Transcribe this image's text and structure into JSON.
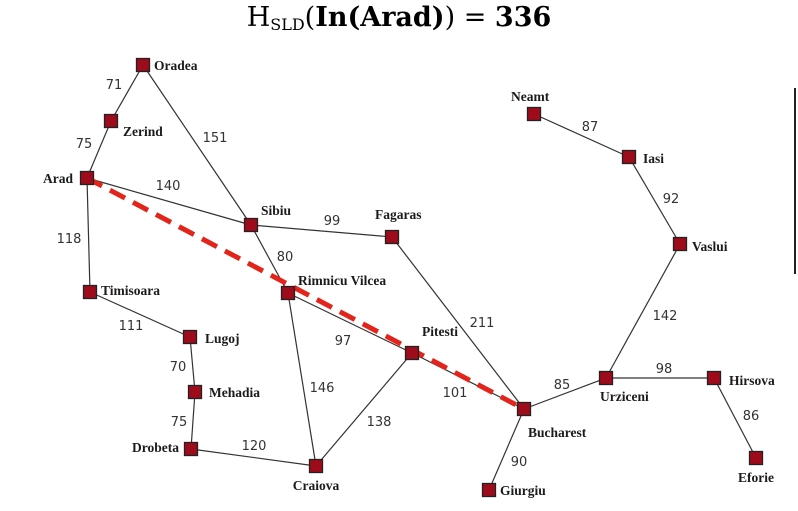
{
  "formula": {
    "prefix": "H",
    "subscript": "SLD",
    "open": "(",
    "expression": "In(Arad)",
    "close": ")",
    "equals": " = ",
    "value": "336"
  },
  "colors": {
    "node": "#9e0b1b",
    "highlight": "#e3241b",
    "road": "#333333"
  },
  "cities": [
    {
      "id": "oradea",
      "name": "Oradea"
    },
    {
      "id": "zerind",
      "name": "Zerind"
    },
    {
      "id": "arad",
      "name": "Arad"
    },
    {
      "id": "timisoara",
      "name": "Timisoara"
    },
    {
      "id": "lugoj",
      "name": "Lugoj"
    },
    {
      "id": "mehadia",
      "name": "Mehadia"
    },
    {
      "id": "drobeta",
      "name": "Drobeta"
    },
    {
      "id": "craiova",
      "name": "Craiova"
    },
    {
      "id": "sibiu",
      "name": "Sibiu"
    },
    {
      "id": "fagaras",
      "name": "Fagaras"
    },
    {
      "id": "rimnicu",
      "name": "Rimnicu Vilcea"
    },
    {
      "id": "pitesti",
      "name": "Pitesti"
    },
    {
      "id": "bucharest",
      "name": "Bucharest"
    },
    {
      "id": "giurgiu",
      "name": "Giurgiu"
    },
    {
      "id": "urziceni",
      "name": "Urziceni"
    },
    {
      "id": "hirsova",
      "name": "Hirsova"
    },
    {
      "id": "eforie",
      "name": "Eforie"
    },
    {
      "id": "vaslui",
      "name": "Vaslui"
    },
    {
      "id": "iasi",
      "name": "Iasi"
    },
    {
      "id": "neamt",
      "name": "Neamt"
    }
  ],
  "roads": [
    {
      "from": "oradea",
      "to": "zerind",
      "distance": "71"
    },
    {
      "from": "zerind",
      "to": "arad",
      "distance": "75"
    },
    {
      "from": "oradea",
      "to": "sibiu",
      "distance": "151"
    },
    {
      "from": "arad",
      "to": "sibiu",
      "distance": "140"
    },
    {
      "from": "arad",
      "to": "timisoara",
      "distance": "118"
    },
    {
      "from": "timisoara",
      "to": "lugoj",
      "distance": "111"
    },
    {
      "from": "lugoj",
      "to": "mehadia",
      "distance": "70"
    },
    {
      "from": "mehadia",
      "to": "drobeta",
      "distance": "75"
    },
    {
      "from": "drobeta",
      "to": "craiova",
      "distance": "120"
    },
    {
      "from": "sibiu",
      "to": "fagaras",
      "distance": "99"
    },
    {
      "from": "sibiu",
      "to": "rimnicu",
      "distance": "80"
    },
    {
      "from": "rimnicu",
      "to": "pitesti",
      "distance": "97"
    },
    {
      "from": "rimnicu",
      "to": "craiova",
      "distance": "146"
    },
    {
      "from": "craiova",
      "to": "pitesti",
      "distance": "138"
    },
    {
      "from": "pitesti",
      "to": "bucharest",
      "distance": "101"
    },
    {
      "from": "fagaras",
      "to": "bucharest",
      "distance": "211"
    },
    {
      "from": "bucharest",
      "to": "giurgiu",
      "distance": "90"
    },
    {
      "from": "bucharest",
      "to": "urziceni",
      "distance": "85"
    },
    {
      "from": "urziceni",
      "to": "hirsova",
      "distance": "98"
    },
    {
      "from": "hirsova",
      "to": "eforie",
      "distance": "86"
    },
    {
      "from": "urziceni",
      "to": "vaslui",
      "distance": "142"
    },
    {
      "from": "vaslui",
      "to": "iasi",
      "distance": "92"
    },
    {
      "from": "iasi",
      "to": "neamt",
      "distance": "87"
    }
  ],
  "highlight": {
    "from": "arad",
    "to": "bucharest",
    "style": "dashed"
  }
}
